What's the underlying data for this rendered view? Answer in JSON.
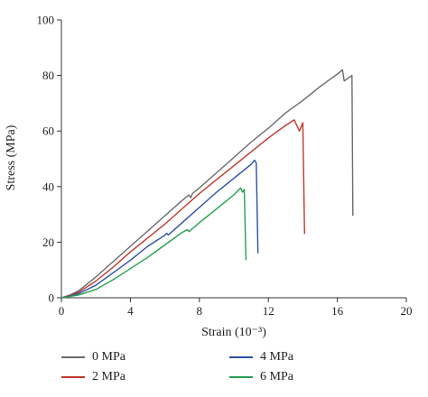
{
  "chart_data": {
    "type": "line",
    "title": "",
    "xlabel": "Strain (10⁻³)",
    "ylabel": "Stress (MPa)",
    "xlim": [
      0,
      20
    ],
    "ylim": [
      0,
      100
    ],
    "xticks": [
      0,
      4,
      8,
      12,
      16,
      20
    ],
    "yticks": [
      0,
      20,
      40,
      60,
      80,
      100
    ],
    "grid": false,
    "legend_position": "bottom",
    "series": [
      {
        "name": "0 MPa",
        "color": "#6b6b6b",
        "points": [
          [
            0,
            0
          ],
          [
            0.5,
            1
          ],
          [
            1,
            2.5
          ],
          [
            2,
            7.5
          ],
          [
            3,
            13
          ],
          [
            4,
            18.5
          ],
          [
            5,
            24
          ],
          [
            6,
            29.5
          ],
          [
            7,
            35
          ],
          [
            7.4,
            37
          ],
          [
            7.5,
            36
          ],
          [
            7.6,
            37.5
          ],
          [
            8,
            39.5
          ],
          [
            9,
            45
          ],
          [
            10,
            50.5
          ],
          [
            11,
            56
          ],
          [
            12,
            61
          ],
          [
            13,
            66.5
          ],
          [
            14,
            71
          ],
          [
            15,
            76
          ],
          [
            16,
            80.5
          ],
          [
            16.3,
            82
          ],
          [
            16.4,
            78
          ],
          [
            16.85,
            80
          ],
          [
            16.9,
            29.5
          ]
        ]
      },
      {
        "name": "2 MPa",
        "color": "#c0392b",
        "points": [
          [
            0,
            0
          ],
          [
            0.5,
            0.8
          ],
          [
            1,
            2
          ],
          [
            2,
            6
          ],
          [
            3,
            11
          ],
          [
            4,
            16.5
          ],
          [
            5,
            21.5
          ],
          [
            6,
            26.5
          ],
          [
            7,
            32
          ],
          [
            8,
            37.5
          ],
          [
            9,
            42.5
          ],
          [
            10,
            47.5
          ],
          [
            11,
            52.5
          ],
          [
            12,
            57.5
          ],
          [
            13,
            62
          ],
          [
            13.5,
            64
          ],
          [
            13.8,
            60
          ],
          [
            14,
            63
          ],
          [
            14.1,
            23
          ]
        ]
      },
      {
        "name": "4 MPa",
        "color": "#2c4fa8",
        "points": [
          [
            0,
            0
          ],
          [
            0.5,
            0.6
          ],
          [
            1,
            1.5
          ],
          [
            2,
            4.5
          ],
          [
            3,
            9
          ],
          [
            4,
            13.5
          ],
          [
            5,
            18.5
          ],
          [
            6,
            22.5
          ],
          [
            6.1,
            23.2
          ],
          [
            6.2,
            22.6
          ],
          [
            7,
            27
          ],
          [
            8,
            32.5
          ],
          [
            9,
            38
          ],
          [
            10,
            43
          ],
          [
            11,
            48
          ],
          [
            11.2,
            49.5
          ],
          [
            11.3,
            48.5
          ],
          [
            11.4,
            16
          ]
        ]
      },
      {
        "name": "6 MPa",
        "color": "#27a050",
        "points": [
          [
            0,
            0
          ],
          [
            0.5,
            0.5
          ],
          [
            1,
            1
          ],
          [
            2,
            3
          ],
          [
            3,
            6.5
          ],
          [
            4,
            10.5
          ],
          [
            5,
            14.5
          ],
          [
            6,
            19
          ],
          [
            7,
            23.5
          ],
          [
            7.3,
            24.5
          ],
          [
            7.4,
            23.8
          ],
          [
            8,
            27
          ],
          [
            9,
            32
          ],
          [
            10,
            37
          ],
          [
            10.4,
            39.5
          ],
          [
            10.5,
            38
          ],
          [
            10.6,
            39
          ],
          [
            10.7,
            13.5
          ]
        ]
      }
    ]
  }
}
